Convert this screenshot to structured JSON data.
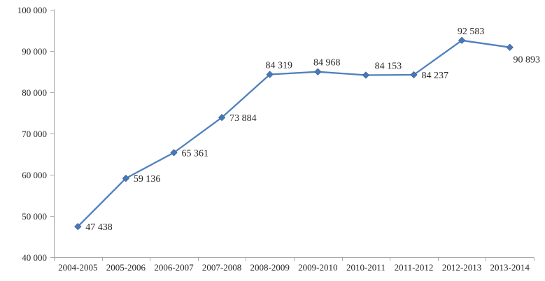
{
  "chart_data": {
    "type": "line",
    "title": "",
    "xlabel": "",
    "ylabel": "",
    "grid": false,
    "legend": "none",
    "categories": [
      "2004-2005",
      "2005-2006",
      "2006-2007",
      "2007-2008",
      "2008-2009",
      "2009-2010",
      "2010-2011",
      "2011-2012",
      "2012-2013",
      "2013-2014"
    ],
    "series": [
      {
        "name": "series-1",
        "values": [
          47438,
          59136,
          65361,
          73884,
          84319,
          84968,
          84153,
          84237,
          92583,
          90893
        ]
      }
    ],
    "data_labels": [
      "47 438",
      "59 136",
      "65 361",
      "73 884",
      "84 319",
      "84 968",
      "84 153",
      "84 237",
      "92 583",
      "90 893"
    ],
    "label_positions": [
      "right",
      "right",
      "right",
      "right",
      "above",
      "above",
      "above-right",
      "right",
      "above",
      "below-right"
    ],
    "ylim": [
      40000,
      100000
    ],
    "y_tick_step": 10000,
    "y_tick_labels": [
      "40 000",
      "50 000",
      "60 000",
      "70 000",
      "80 000",
      "90 000",
      "100 000"
    ],
    "colors": {
      "line": "#4F81BD",
      "marker_fill": "#4A78B6",
      "marker_edge": "#3A679C",
      "axis": "#A6A6A6",
      "text": "#262626",
      "background": "#FFFFFF"
    }
  }
}
